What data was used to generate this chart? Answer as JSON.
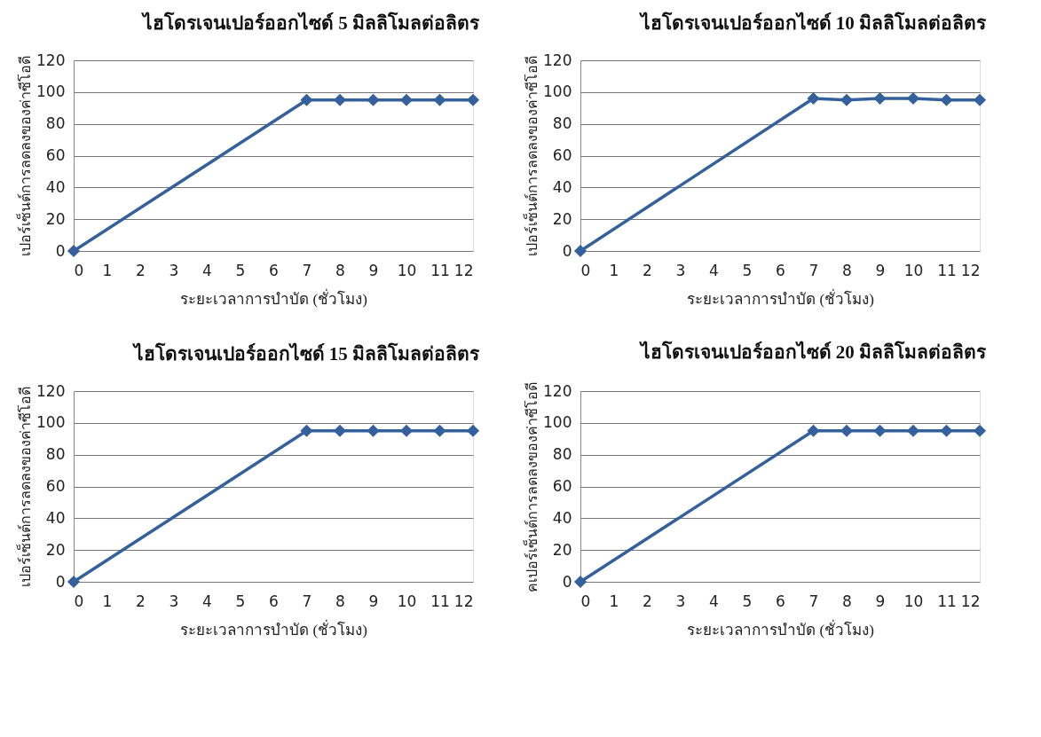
{
  "chart_data": [
    {
      "type": "line",
      "title": "ไฮโดรเจนเปอร์ออกไซด์ 5 มิลลิโมลต่อลิตร",
      "xlabel": "ระยะเวลาการบำบัด (ชั่วโมง)",
      "ylabel": "เปอร์เซ็นต์การลดลงของค่าซีโอดี",
      "x": [
        0,
        7,
        8,
        9,
        10,
        11,
        12
      ],
      "series": [
        {
          "color": "#34609c",
          "values": [
            0,
            95,
            95,
            95,
            95,
            95,
            95
          ]
        }
      ],
      "xlim": [
        0,
        12
      ],
      "xticks": [
        0,
        1,
        2,
        3,
        4,
        5,
        6,
        7,
        8,
        9,
        10,
        11,
        12
      ],
      "ylim": [
        0,
        120
      ],
      "yticks": [
        0,
        20,
        40,
        60,
        80,
        100,
        120
      ],
      "grid": "y",
      "marker": "diamond",
      "line_style": "solid"
    },
    {
      "type": "line",
      "title": "ไฮโดรเจนเปอร์ออกไซด์ 10 มิลลิโมลต่อลิตร",
      "xlabel": "ระยะเวลาการบำบัด (ชั่วโมง)",
      "ylabel": "เปอร์เซ็นต์การลดลงของค่าซีโอดี",
      "x": [
        0,
        7,
        8,
        9,
        10,
        11,
        12
      ],
      "series": [
        {
          "color": "#34609c",
          "values": [
            0,
            96,
            95,
            96,
            96,
            95,
            95
          ]
        }
      ],
      "xlim": [
        0,
        12
      ],
      "xticks": [
        0,
        1,
        2,
        3,
        4,
        5,
        6,
        7,
        8,
        9,
        10,
        11,
        12
      ],
      "ylim": [
        0,
        120
      ],
      "yticks": [
        0,
        20,
        40,
        60,
        80,
        100,
        120
      ],
      "grid": "y",
      "marker": "diamond",
      "line_style": "solid"
    },
    {
      "type": "line",
      "title": "ไฮโดรเจนเปอร์ออกไซด์ 15 มิลลิโมลต่อลิตร",
      "xlabel": "ระยะเวลาการบำบัด (ชั่วโมง)",
      "ylabel": "เปอร์เซ็นต์การลดลงของค่าซีโอดี",
      "x": [
        0,
        7,
        8,
        9,
        10,
        11,
        12
      ],
      "series": [
        {
          "color": "#34609c",
          "values": [
            0,
            95,
            95,
            95,
            95,
            95,
            95
          ]
        }
      ],
      "xlim": [
        0,
        12
      ],
      "xticks": [
        0,
        1,
        2,
        3,
        4,
        5,
        6,
        7,
        8,
        9,
        10,
        11,
        12
      ],
      "ylim": [
        0,
        120
      ],
      "yticks": [
        0,
        20,
        40,
        60,
        80,
        100,
        120
      ],
      "grid": "y",
      "marker": "diamond",
      "line_style": "solid"
    },
    {
      "type": "line",
      "title": "ไฮโดรเจนเปอร์ออกไซด์ 20 มิลลิโมลต่อลิตร",
      "xlabel": "ระยะเวลาการบำบัด (ชั่วโมง)",
      "ylabel": "คเปอร์เซ็นต์การลดลงของค่าซีโอดี",
      "x": [
        0,
        7,
        8,
        9,
        10,
        11,
        12
      ],
      "series": [
        {
          "color": "#34609c",
          "values": [
            0,
            95,
            95,
            95,
            95,
            95,
            95
          ]
        }
      ],
      "xlim": [
        0,
        12
      ],
      "xticks": [
        0,
        1,
        2,
        3,
        4,
        5,
        6,
        7,
        8,
        9,
        10,
        11,
        12
      ],
      "ylim": [
        0,
        120
      ],
      "yticks": [
        0,
        20,
        40,
        60,
        80,
        100,
        120
      ],
      "grid": "y",
      "marker": "diamond",
      "line_style": "solid"
    }
  ]
}
